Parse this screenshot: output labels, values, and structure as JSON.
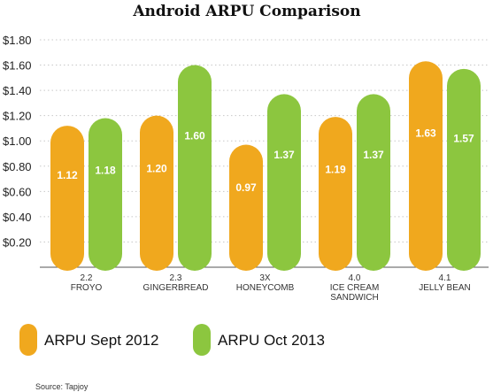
{
  "chart_data": {
    "type": "bar",
    "title": "Android ARPU Comparison",
    "categories": [
      [
        "2.2",
        "FROYO"
      ],
      [
        "2.3",
        "GINGERBREAD"
      ],
      [
        "3X",
        "HONEYCOMB"
      ],
      [
        "4.0",
        "ICE CREAM",
        "SANDWICH"
      ],
      [
        "4.1",
        "JELLY BEAN"
      ]
    ],
    "series": [
      {
        "name": "ARPU Sept 2012",
        "color": "#F0A81E",
        "values": [
          1.12,
          1.2,
          0.97,
          1.19,
          1.63
        ],
        "labels": [
          "1.12",
          "1.20",
          "0.97",
          "1.19",
          "1.63"
        ]
      },
      {
        "name": "ARPU Oct 2013",
        "color": "#8CC63F",
        "values": [
          1.18,
          1.6,
          1.37,
          1.37,
          1.57
        ],
        "labels": [
          "1.18",
          "1.60",
          "1.37",
          "1.37",
          "1.57"
        ]
      }
    ],
    "y_ticks": [
      "$0.20",
      "$0.40",
      "$0.60",
      "$0.80",
      "$1.00",
      "$1.20",
      "$1.40",
      "$1.60",
      "$1.80"
    ],
    "ylim": [
      0,
      1.8
    ],
    "grid": "horizontal dotted",
    "legend_position": "bottom-left",
    "source": "Source: Tapjoy"
  }
}
